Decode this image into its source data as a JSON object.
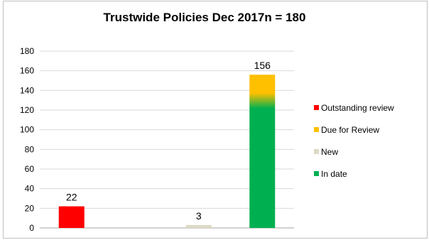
{
  "chart_data": {
    "type": "bar",
    "title": "Trustwide Policies Dec 2017n = 180",
    "xlabel": "",
    "ylabel": "",
    "ylim": [
      0,
      180
    ],
    "y_ticks": [
      0,
      20,
      40,
      60,
      80,
      100,
      120,
      140,
      160,
      180
    ],
    "grid": true,
    "legend_position": "right",
    "categories": [
      "Outstanding review",
      "Due for Review",
      "New",
      "In date"
    ],
    "series": [
      {
        "name": "Outstanding review",
        "color": "#ff0000",
        "values": [
          22,
          0,
          0,
          0
        ]
      },
      {
        "name": "Due for Review",
        "color": "#ffc000",
        "values": [
          0,
          0,
          0,
          0
        ]
      },
      {
        "name": "New",
        "color": "#ddd9c3",
        "values": [
          0,
          0,
          3,
          0
        ]
      },
      {
        "name": "In date",
        "color": "#00b050",
        "values": [
          0,
          0,
          0,
          156
        ]
      }
    ],
    "data_labels": [
      "22",
      "",
      "3",
      "156"
    ]
  }
}
